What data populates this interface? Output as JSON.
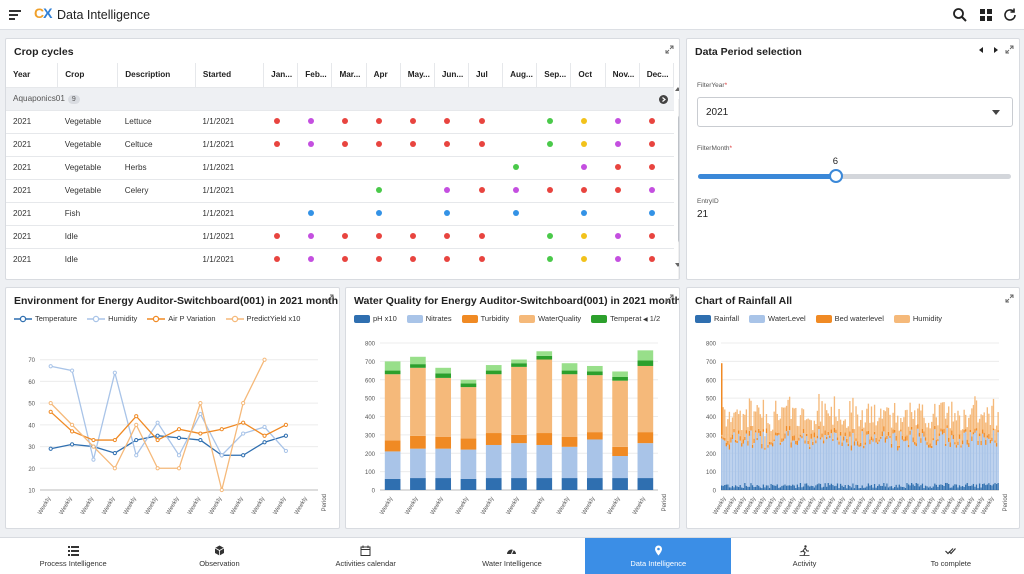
{
  "app": {
    "title": "Data Intelligence",
    "logo_c": "C",
    "logo_x": "X"
  },
  "crop": {
    "title": "Crop cycles",
    "columns": [
      "Year",
      "Crop",
      "Description",
      "Started",
      "Jan...",
      "Feb...",
      "Mar...",
      "Apr",
      "May...",
      "Jun...",
      "Jul",
      "Aug...",
      "Sep...",
      "Oct",
      "Nov...",
      "Dec..."
    ],
    "group": {
      "label": "Aquaponics01",
      "count": "9"
    },
    "rows": [
      {
        "year": "2021",
        "crop": "Vegetable",
        "desc": "Lettuce",
        "started": "1/1/2021",
        "months": [
          "red",
          "purple",
          "red",
          "red",
          "red",
          "red",
          "red",
          "",
          "green",
          "yellow",
          "purple",
          "red"
        ]
      },
      {
        "year": "2021",
        "crop": "Vegetable",
        "desc": "Celtuce",
        "started": "1/1/2021",
        "months": [
          "red",
          "purple",
          "red",
          "red",
          "red",
          "red",
          "red",
          "",
          "green",
          "yellow",
          "purple",
          "red"
        ]
      },
      {
        "year": "2021",
        "crop": "Vegetable",
        "desc": "Herbs",
        "started": "1/1/2021",
        "months": [
          "",
          "",
          "",
          "",
          "",
          "",
          "",
          "green",
          "",
          "purple",
          "red",
          "red"
        ]
      },
      {
        "year": "2021",
        "crop": "Vegetable",
        "desc": "Celery",
        "started": "1/1/2021",
        "months": [
          "",
          "",
          "",
          "green",
          "",
          "purple",
          "red",
          "purple",
          "red",
          "red",
          "red",
          "purple"
        ]
      },
      {
        "year": "2021",
        "crop": "Fish",
        "desc": "",
        "started": "1/1/2021",
        "months": [
          "",
          "blue",
          "",
          "blue",
          "",
          "blue",
          "",
          "blue",
          "",
          "blue",
          "",
          "blue"
        ]
      },
      {
        "year": "2021",
        "crop": "Idle",
        "desc": "",
        "started": "1/1/2021",
        "months": [
          "red",
          "purple",
          "red",
          "red",
          "red",
          "red",
          "red",
          "",
          "green",
          "yellow",
          "purple",
          "red"
        ]
      },
      {
        "year": "2021",
        "crop": "Idle",
        "desc": "",
        "started": "1/1/2021",
        "months": [
          "red",
          "purple",
          "red",
          "red",
          "red",
          "red",
          "red",
          "",
          "green",
          "yellow",
          "purple",
          "red"
        ]
      }
    ]
  },
  "colors": {
    "red": "#e8443f",
    "purple": "#c44fe0",
    "green": "#4ac94a",
    "yellow": "#f2c21b",
    "blue": "#3392e6",
    "accent": "#3b88d8"
  },
  "period": {
    "title": "Data Period selection",
    "filter_year_label": "FilterYear",
    "filter_year_value": "2021",
    "filter_month_label": "FilterMonth",
    "filter_month_value": "6",
    "filter_month_fraction": 0.44,
    "entry_label": "EntryID",
    "entry_value": "21"
  },
  "env": {
    "title": "Environment for Energy Auditor-Switchboard(001) in 2021 month 6",
    "legend": [
      "Temperature",
      "Humidity",
      "Air P Variation",
      "PredictYield x10"
    ],
    "x_tick": "Weekly",
    "x_axis_label": "Period"
  },
  "water": {
    "title": "Water Quality for Energy Auditor-Switchboard(001) in 2021 month 6",
    "legend": [
      "pH x10",
      "Nitrates",
      "Turbidity",
      "WaterQuality",
      "Temperat"
    ],
    "pager": "1/2",
    "x_tick": "Weekly",
    "x_axis_label": "Period"
  },
  "rain": {
    "title": "Chart of Rainfall All",
    "legend": [
      "Rainfall",
      "WaterLevel",
      "Bed waterlevel",
      "Humidity"
    ],
    "x_tick": "Weekly",
    "x_axis_label": "Period"
  },
  "nav": [
    "Process Intelligence",
    "Observation",
    "Activities calendar",
    "Water Intelligence",
    "Data Intelligence",
    "Activity",
    "To complete"
  ],
  "chart_data": [
    {
      "type": "line",
      "title": "Environment for Energy Auditor-Switchboard(001) in 2021 month 6",
      "xlabel": "Period",
      "ylim": [
        10,
        80
      ],
      "yticks": [
        10,
        20,
        30,
        40,
        50,
        60,
        70
      ],
      "categories": [
        "Weekly",
        "Weekly",
        "Weekly",
        "Weekly",
        "Weekly",
        "Weekly",
        "Weekly",
        "Weekly",
        "Weekly",
        "Weekly",
        "Weekly",
        "Weekly",
        "Weekly"
      ],
      "series": [
        {
          "name": "Temperature",
          "color": "#2f6fb0",
          "values": [
            29,
            31,
            30,
            27,
            33,
            35,
            34,
            33,
            26,
            26,
            32,
            35,
            null
          ]
        },
        {
          "name": "Humidity",
          "color": "#a9c4e8",
          "values": [
            67,
            65,
            24,
            64,
            26,
            41,
            26,
            45,
            26,
            36,
            39,
            28,
            null
          ]
        },
        {
          "name": "Air P Variation",
          "color": "#f08a24",
          "values": [
            46,
            37,
            33,
            33,
            44,
            33,
            38,
            36,
            38,
            41,
            35,
            40,
            null
          ]
        },
        {
          "name": "PredictYield x10",
          "color": "#f5b97a",
          "values": [
            50,
            40,
            30,
            20,
            40,
            20,
            20,
            50,
            10,
            50,
            70,
            null,
            null
          ]
        }
      ]
    },
    {
      "type": "bar",
      "title": "Water Quality for Energy Auditor-Switchboard(001) in 2021 month 6",
      "xlabel": "Period",
      "ylim": [
        0,
        800
      ],
      "yticks": [
        0,
        100,
        200,
        300,
        400,
        500,
        600,
        700,
        800
      ],
      "categories": [
        "Weekly",
        "Weekly",
        "Weekly",
        "Weekly",
        "Weekly",
        "Weekly",
        "Weekly",
        "Weekly",
        "Weekly",
        "Weekly",
        "Weekly"
      ],
      "series": [
        {
          "name": "pH x10",
          "color": "#2f6fb0",
          "values": [
            60,
            65,
            65,
            60,
            65,
            65,
            65,
            65,
            65,
            65,
            65
          ]
        },
        {
          "name": "Nitrates",
          "color": "#a9c4e8",
          "values": [
            150,
            160,
            160,
            160,
            180,
            190,
            180,
            170,
            210,
            120,
            190
          ]
        },
        {
          "name": "Turbidity",
          "color": "#f08a24",
          "values": [
            60,
            70,
            65,
            60,
            65,
            45,
            65,
            55,
            40,
            50,
            60
          ]
        },
        {
          "name": "WaterQuality",
          "color": "#f5b97a",
          "values": [
            360,
            370,
            320,
            280,
            320,
            370,
            400,
            340,
            310,
            360,
            360
          ]
        },
        {
          "name": "Temperat",
          "color": "#2ca02c",
          "values": [
            20,
            20,
            25,
            20,
            20,
            20,
            20,
            20,
            20,
            20,
            30
          ]
        },
        {
          "name": "",
          "color": "#98df8a",
          "values": [
            50,
            40,
            30,
            20,
            30,
            20,
            25,
            40,
            30,
            30,
            55
          ]
        }
      ]
    },
    {
      "type": "bar",
      "title": "Chart of Rainfall All",
      "xlabel": "Period",
      "ylim": [
        0,
        800
      ],
      "yticks": [
        0,
        100,
        200,
        300,
        400,
        500,
        600,
        700,
        800
      ],
      "series": [
        {
          "name": "Rainfall",
          "color": "#2f6fb0",
          "approx_range": [
            10,
            40
          ]
        },
        {
          "name": "WaterLevel",
          "color": "#a9c4e8",
          "approx_range": [
            200,
            300
          ]
        },
        {
          "name": "Bed waterlevel",
          "color": "#f08a24",
          "approx_range": [
            10,
            30
          ]
        },
        {
          "name": "Humidity",
          "color": "#f5b97a",
          "approx_range": [
            60,
            180
          ]
        }
      ]
    }
  ]
}
